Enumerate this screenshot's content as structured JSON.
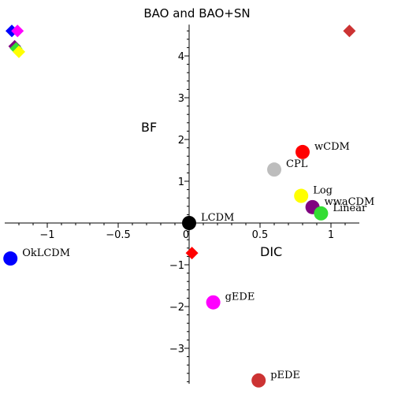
{
  "chart_data": {
    "type": "scatter",
    "title": "BAO and BAO+SN",
    "xlabel": "DIC",
    "ylabel": "BF",
    "xlim": [
      -1.3,
      1.2
    ],
    "ylim": [
      -3.85,
      4.75
    ],
    "x_ticks": [
      {
        "value": -1,
        "label": "−1"
      },
      {
        "value": -0.5,
        "label": "−0.5"
      },
      {
        "value": 0,
        "label": "0"
      },
      {
        "value": 0.5,
        "label": "0.5"
      },
      {
        "value": 1,
        "label": "1"
      }
    ],
    "y_ticks": [
      {
        "value": -3,
        "label": "−3"
      },
      {
        "value": -2,
        "label": "−2"
      },
      {
        "value": -1,
        "label": "−1"
      },
      {
        "value": 1,
        "label": "1"
      },
      {
        "value": 2,
        "label": "2"
      },
      {
        "value": 3,
        "label": "3"
      },
      {
        "value": 4,
        "label": "4"
      }
    ],
    "points": [
      {
        "label": "wCDM",
        "x": 0.8,
        "y": 1.7,
        "color": "#ff0000"
      },
      {
        "label": "CPL",
        "x": 0.6,
        "y": 1.28,
        "color": "#bdbdbd"
      },
      {
        "label": "Log",
        "x": 0.79,
        "y": 0.65,
        "color": "#ffff00"
      },
      {
        "label": "wwaCDM",
        "x": 0.87,
        "y": 0.38,
        "color": "#800080"
      },
      {
        "label": "Linear",
        "x": 0.93,
        "y": 0.23,
        "color": "#33dd33"
      },
      {
        "label": "LCDM",
        "x": 0.0,
        "y": 0.0,
        "color": "#000000"
      },
      {
        "label": "OkLCDM",
        "x": -1.26,
        "y": -0.85,
        "color": "#0000ff"
      },
      {
        "label": "gEDE",
        "x": 0.17,
        "y": -1.9,
        "color": "#ff00ff"
      },
      {
        "label": "pEDE",
        "x": 0.49,
        "y": -3.77,
        "color": "#cc3333"
      }
    ],
    "diamonds": [
      {
        "x": -1.25,
        "y": 4.6,
        "color": "#0000ff"
      },
      {
        "x": -1.21,
        "y": 4.6,
        "color": "#ff00ff"
      },
      {
        "x": -1.23,
        "y": 4.23,
        "color": "#800080"
      },
      {
        "x": -1.22,
        "y": 4.18,
        "color": "#33dd33"
      },
      {
        "x": -1.2,
        "y": 4.1,
        "color": "#ffff00"
      },
      {
        "x": 1.13,
        "y": 4.6,
        "color": "#cc3333"
      },
      {
        "x": 0.02,
        "y": -0.72,
        "color": "#ff0000"
      }
    ]
  }
}
